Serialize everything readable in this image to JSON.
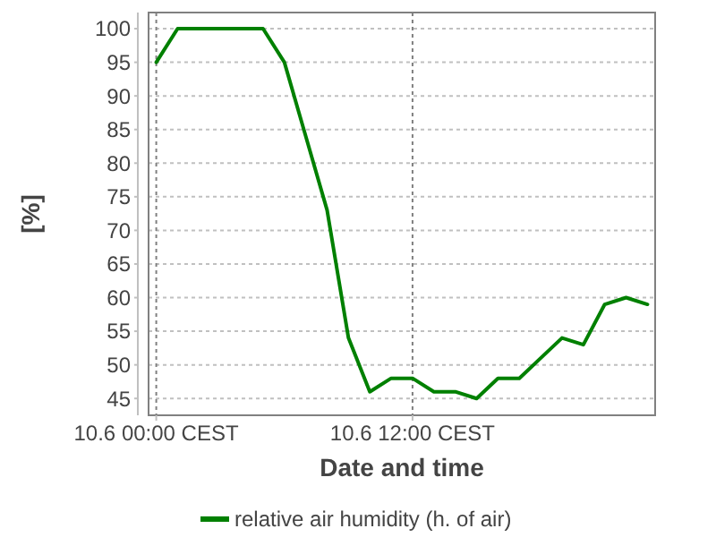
{
  "chart_data": {
    "type": "line",
    "xlabel": "Date and time",
    "ylabel": "[%]",
    "categories": [
      "10.6 00:00 CEST",
      null,
      null,
      null,
      null,
      null,
      null,
      null,
      null,
      null,
      null,
      null,
      "10.6 12:00 CEST",
      null,
      null,
      null,
      null,
      null,
      null,
      null,
      null,
      null,
      null,
      null
    ],
    "series": [
      {
        "name": "relative air humidity (h. of air)",
        "color": "#008000",
        "values": [
          95,
          100,
          100,
          100,
          100,
          100,
          95,
          84,
          73,
          54,
          46,
          48,
          48,
          46,
          46,
          45,
          48,
          48,
          51,
          54,
          53,
          59,
          60,
          59
        ]
      }
    ],
    "ylim": [
      42.5,
      102.4
    ],
    "yticks": [
      45,
      50,
      55,
      60,
      65,
      70,
      75,
      80,
      85,
      90,
      95,
      100
    ],
    "grid": true,
    "legend": "bottom",
    "marker": "none",
    "line_style": "solid"
  }
}
